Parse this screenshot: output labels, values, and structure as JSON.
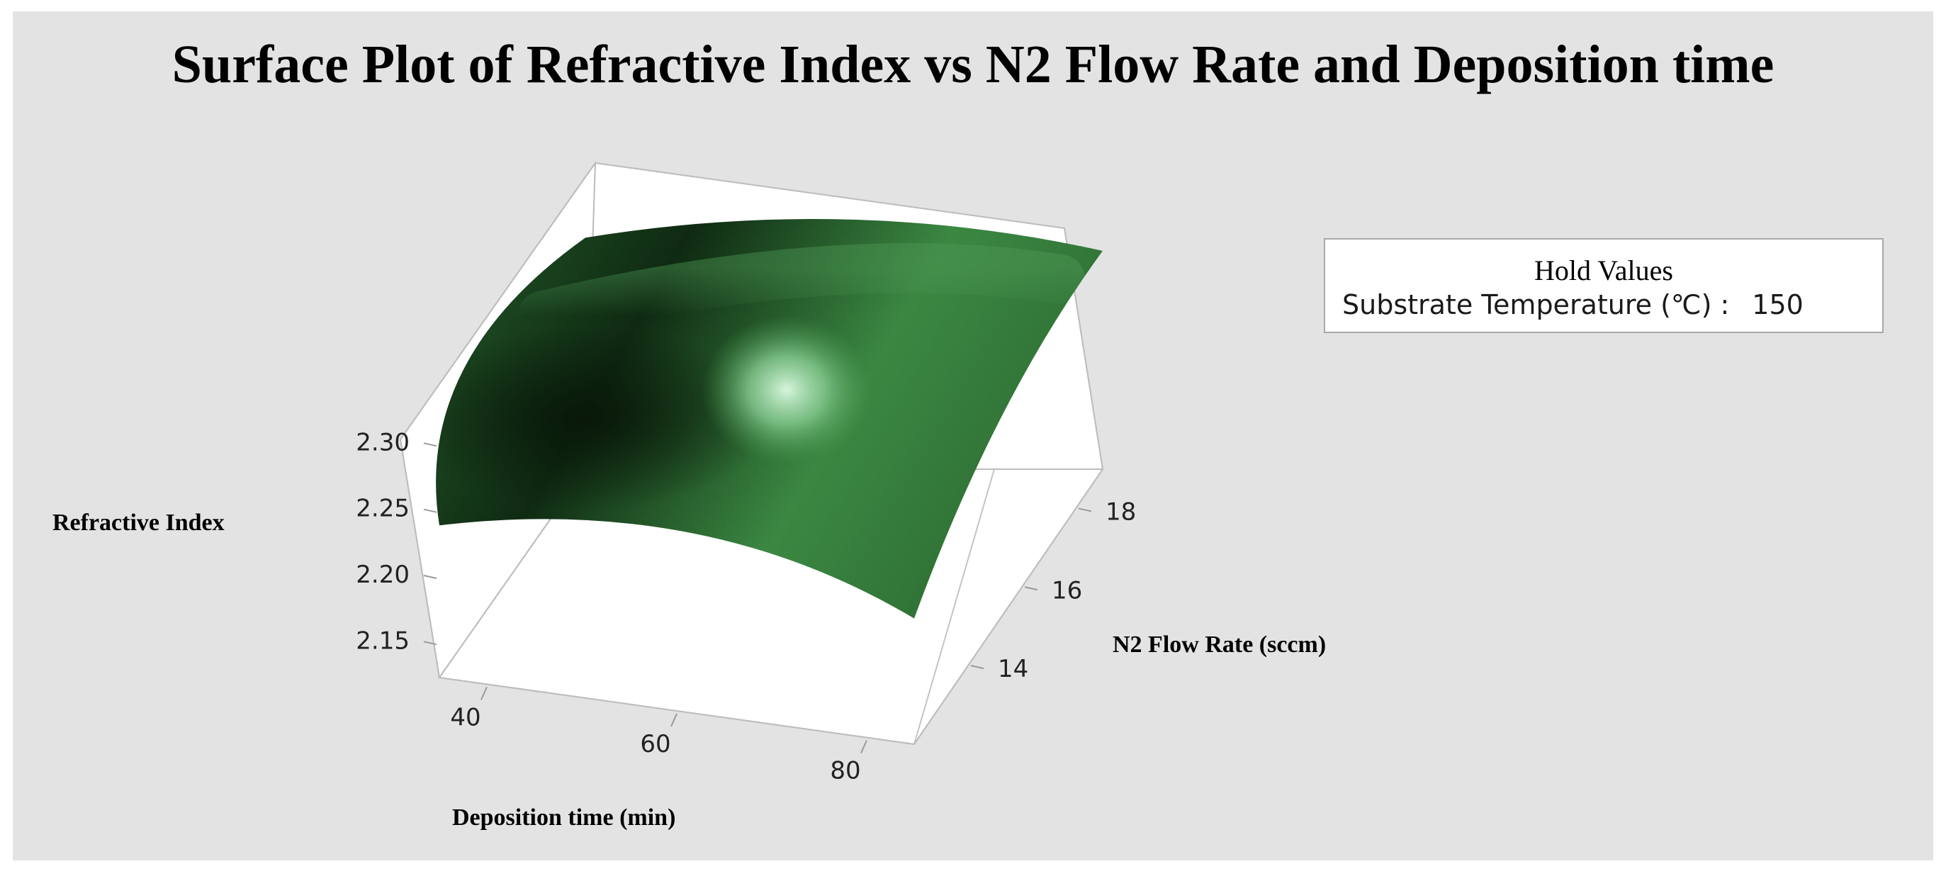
{
  "title": "Surface Plot of Refractive Index vs N2 Flow Rate and Deposition time",
  "hold_values": {
    "heading": "Hold Values",
    "label": "Substrate Temperature (℃) :",
    "value": "150"
  },
  "chart_data": {
    "type": "surface",
    "title": "Surface Plot of Refractive Index vs N2 Flow Rate and Deposition time",
    "xlabel": "Deposition time (min)",
    "ylabel": "N2 Flow Rate (sccm)",
    "zlabel": "Refractive Index",
    "x_ticks": [
      40,
      60,
      80
    ],
    "y_ticks": [
      14,
      16,
      18
    ],
    "z_ticks": [
      "2.15",
      "2.20",
      "2.25",
      "2.30"
    ],
    "xlim": [
      35,
      85
    ],
    "ylim": [
      12,
      19
    ],
    "zlim": [
      2.125,
      2.305
    ],
    "corners": [
      {
        "x": 35,
        "y": 12,
        "z": 2.24
      },
      {
        "x": 85,
        "y": 12,
        "z": 2.22
      },
      {
        "x": 85,
        "y": 19,
        "z": 2.29
      },
      {
        "x": 35,
        "y": 19,
        "z": 2.3
      }
    ],
    "surface_color": "#3f8a45",
    "shade_dark": "#0c1f0f",
    "highlight_color": "#cdf0d4",
    "background": "#e3e3e3"
  }
}
